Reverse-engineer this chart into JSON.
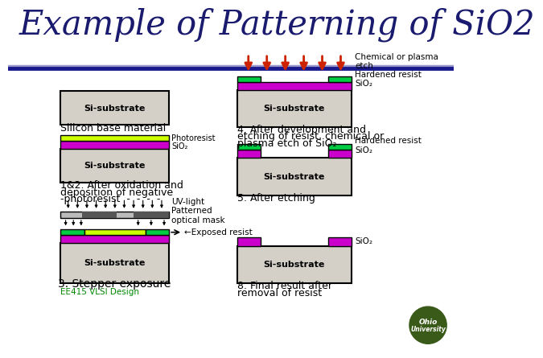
{
  "title": "Example of Patterning of SiO2",
  "title_color": "#1a1a6e",
  "title_fontsize": 30,
  "background_color": "#ffffff",
  "colors": {
    "si_substrate": "#d4d0c8",
    "sio2_purple": "#cc00cc",
    "photoresist_yellow": "#ccff00",
    "hardened_resist_green": "#00cc44",
    "optical_mask_dark": "#555555",
    "optical_mask_light": "#bbbbbb",
    "arrow_red": "#cc2200",
    "line_blue": "#1a1a8e",
    "line_lavender": "#9999cc"
  },
  "footer_text": "EE415 VLSI Design",
  "footer_color": "#008800"
}
